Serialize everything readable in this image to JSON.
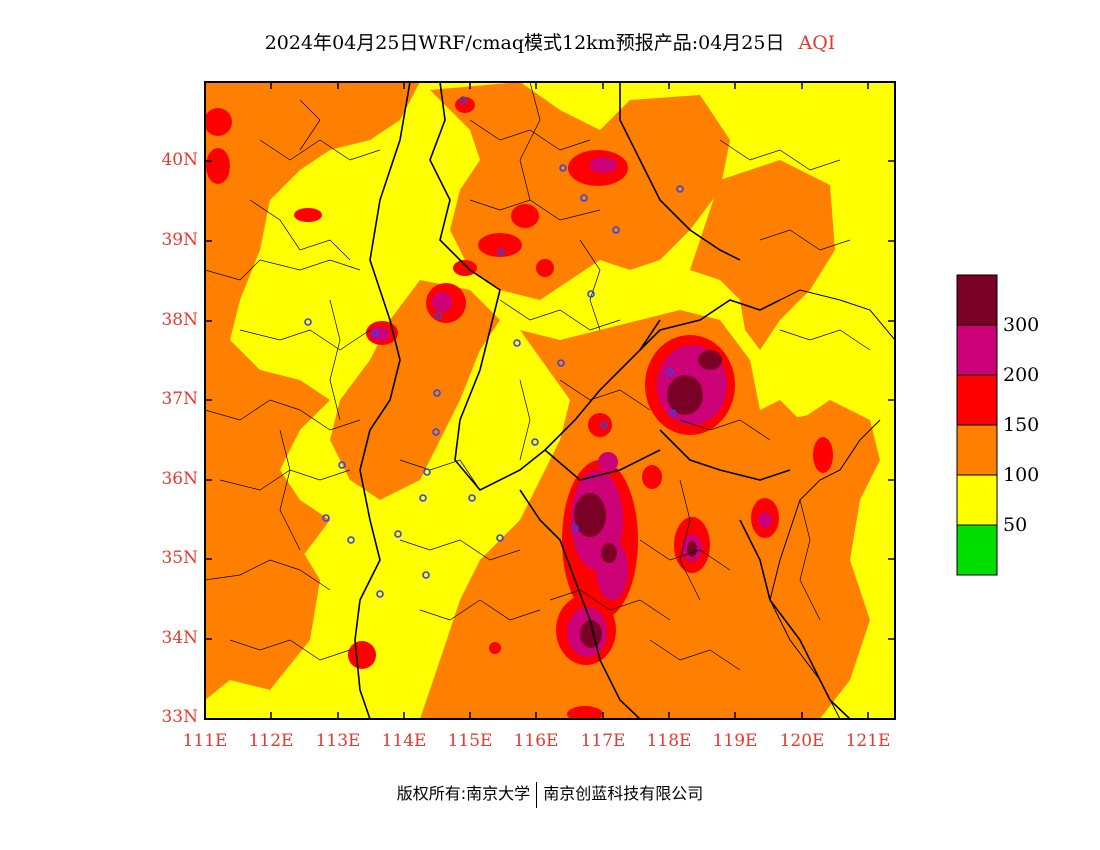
{
  "title": "2024年04月25日WRF/cmaq模式12km预报产品:04月25日",
  "variable": "AQI",
  "map": {
    "lat_labels": [
      "40N",
      "39N",
      "38N",
      "37N",
      "36N",
      "35N",
      "34N",
      "33N"
    ],
    "lon_labels": [
      "111E",
      "112E",
      "113E",
      "114E",
      "115E",
      "116E",
      "117E",
      "118E",
      "119E",
      "120E",
      "121E"
    ],
    "lat_range": [
      33,
      41
    ],
    "lon_range": [
      111,
      121.4
    ]
  },
  "legend": {
    "labels": [
      "300",
      "200",
      "150",
      "100",
      "50"
    ],
    "colors": {
      "good": "#00dd00",
      "moderate": "#ffff00",
      "usg": "#ff8000",
      "unhealthy": "#ff0000",
      "very_unhealthy": "#cc0077",
      "hazardous": "#7a0026"
    }
  },
  "footer": {
    "left": "版权所有:南京大学",
    "right": "南京创蓝科技有限公司"
  }
}
